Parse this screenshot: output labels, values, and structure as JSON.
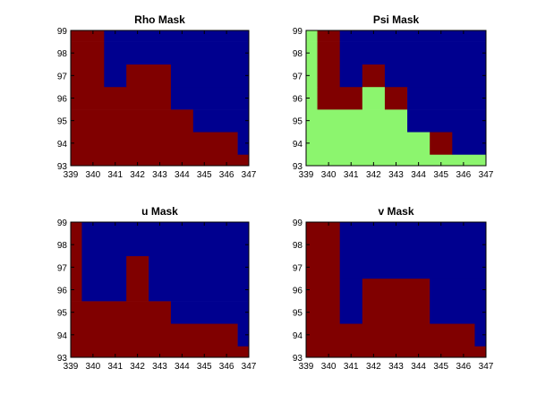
{
  "chart_data": [
    {
      "type": "heatmap",
      "title": "Rho Mask",
      "x_ticks": [
        339,
        340,
        341,
        342,
        343,
        344,
        345,
        346,
        347
      ],
      "y_ticks": [
        93,
        94,
        95,
        96,
        97,
        98,
        99
      ],
      "xlim": [
        339,
        347
      ],
      "ylim": [
        93,
        99
      ],
      "color_map": {
        "0": "#800000",
        "1": "#00008f"
      },
      "x_edges": [
        339,
        340.5,
        341.5,
        342.5,
        343.5,
        344.5,
        345.5,
        346.5,
        347
      ],
      "y_edges": [
        93,
        93.5,
        94.5,
        95.5,
        96.5,
        97.5,
        98.5,
        99
      ],
      "values": [
        [
          0,
          0,
          0,
          0,
          0,
          0,
          0,
          0
        ],
        [
          0,
          0,
          0,
          0,
          0,
          0,
          0,
          1
        ],
        [
          0,
          0,
          0,
          0,
          0,
          1,
          1,
          1
        ],
        [
          0,
          0,
          0,
          0,
          1,
          1,
          1,
          1
        ],
        [
          0,
          1,
          0,
          0,
          1,
          1,
          1,
          1
        ],
        [
          0,
          1,
          1,
          1,
          1,
          1,
          1,
          1
        ],
        [
          0,
          1,
          1,
          1,
          1,
          1,
          1,
          1
        ]
      ]
    },
    {
      "type": "heatmap",
      "title": "Psi Mask",
      "x_ticks": [
        339,
        340,
        341,
        342,
        343,
        344,
        345,
        346,
        347
      ],
      "y_ticks": [
        93,
        94,
        95,
        96,
        97,
        98,
        99
      ],
      "xlim": [
        339,
        347
      ],
      "ylim": [
        93,
        99
      ],
      "color_map": {
        "0": "#800000",
        "1": "#00008f",
        "2": "#8cf56e"
      },
      "x_edges": [
        339,
        339.5,
        340.5,
        341.5,
        342.5,
        343.5,
        344.5,
        345.5,
        346.5,
        347
      ],
      "y_edges": [
        93,
        93.5,
        94.5,
        95.5,
        96.5,
        97.5,
        98.5,
        99
      ],
      "values": [
        [
          2,
          2,
          2,
          2,
          2,
          2,
          2,
          2,
          2
        ],
        [
          2,
          2,
          2,
          2,
          2,
          2,
          0,
          1,
          1
        ],
        [
          2,
          2,
          2,
          2,
          2,
          1,
          1,
          1,
          1
        ],
        [
          2,
          0,
          0,
          2,
          0,
          1,
          1,
          1,
          1
        ],
        [
          2,
          0,
          1,
          0,
          1,
          1,
          1,
          1,
          1
        ],
        [
          2,
          0,
          1,
          1,
          1,
          1,
          1,
          1,
          1
        ],
        [
          2,
          0,
          1,
          1,
          1,
          1,
          1,
          1,
          1
        ]
      ]
    },
    {
      "type": "heatmap",
      "title": "u Mask",
      "x_ticks": [
        339,
        340,
        341,
        342,
        343,
        344,
        345,
        346,
        347
      ],
      "y_ticks": [
        93,
        94,
        95,
        96,
        97,
        98,
        99
      ],
      "xlim": [
        339,
        347
      ],
      "ylim": [
        93,
        99
      ],
      "color_map": {
        "0": "#800000",
        "1": "#00008f"
      },
      "x_edges": [
        339,
        339.5,
        341.5,
        342.5,
        343.5,
        345.5,
        346.5,
        347
      ],
      "y_edges": [
        93,
        93.5,
        94.5,
        95.5,
        97.5,
        99
      ],
      "values": [
        [
          0,
          0,
          0,
          0,
          0,
          0,
          0
        ],
        [
          0,
          0,
          0,
          0,
          0,
          0,
          1
        ],
        [
          0,
          0,
          0,
          0,
          1,
          1,
          1
        ],
        [
          0,
          1,
          0,
          1,
          1,
          1,
          1
        ],
        [
          0,
          1,
          1,
          1,
          1,
          1,
          1
        ]
      ]
    },
    {
      "type": "heatmap",
      "title": "v Mask",
      "x_ticks": [
        339,
        340,
        341,
        342,
        343,
        344,
        345,
        346,
        347
      ],
      "y_ticks": [
        93,
        94,
        95,
        96,
        97,
        98,
        99
      ],
      "xlim": [
        339,
        347
      ],
      "ylim": [
        93,
        99
      ],
      "color_map": {
        "0": "#800000",
        "1": "#00008f"
      },
      "x_edges": [
        339,
        340.5,
        341.5,
        343.5,
        344.5,
        346.5,
        347
      ],
      "y_edges": [
        93,
        93.5,
        94.5,
        96.5,
        99
      ],
      "values": [
        [
          0,
          0,
          0,
          0,
          0,
          0
        ],
        [
          0,
          0,
          0,
          0,
          0,
          1
        ],
        [
          0,
          1,
          0,
          0,
          1,
          1
        ],
        [
          0,
          1,
          1,
          1,
          1,
          1
        ]
      ]
    }
  ]
}
